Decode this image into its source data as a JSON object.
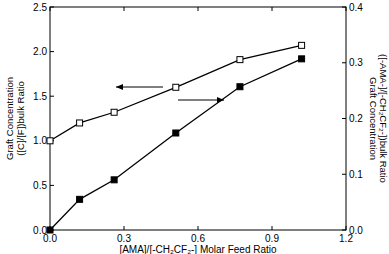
{
  "chart_data": {
    "type": "line",
    "x_label": "[AMA]/[-CH₂CF₂-] Molar Feed Ratio",
    "y_label": [
      "Graft Concentration",
      "([C]/[F])bulk Ratio"
    ],
    "y2_label": [
      "Graft Concentration",
      "([-AMA-]/[-CH₂CF₂-])bulk Ratio"
    ],
    "x": [
      0,
      0.12,
      0.26,
      0.51,
      0.77,
      1.02
    ],
    "series": [
      {
        "color": "#000000",
        "marker": "open-square",
        "line_style": "solid",
        "values": [
          1.0,
          1.2,
          1.32,
          1.6,
          1.91,
          2.07
        ]
      },
      {
        "color": "#000000",
        "marker": "square",
        "line_style": "solid",
        "axis": "y2",
        "values": [
          0,
          0.055,
          0.09,
          0.174,
          0.257,
          0.307
        ]
      }
    ],
    "xlim": [
      0,
      1.2
    ],
    "xticks": [
      {
        "value": 0,
        "label": "0.0"
      },
      {
        "value": 0.3,
        "label": "0.3"
      },
      {
        "value": 0.6,
        "label": "0.6"
      },
      {
        "value": 0.9,
        "label": "0.9"
      },
      {
        "value": 1.2,
        "label": "1.2"
      }
    ],
    "ylim": [
      0,
      2.5
    ],
    "yticks": [
      {
        "value": 0,
        "label": "0.0"
      },
      {
        "value": 0.5,
        "label": "0.5"
      },
      {
        "value": 1.0,
        "label": "1.0"
      },
      {
        "value": 1.5,
        "label": "1.5"
      },
      {
        "value": 2.0,
        "label": "2.0"
      },
      {
        "value": 2.5,
        "label": "2.5"
      }
    ],
    "y2lim": [
      0,
      0.4
    ],
    "y2ticks": [
      {
        "value": 0,
        "label": "0.0"
      },
      {
        "value": 0.1,
        "label": "0.1"
      },
      {
        "value": 0.2,
        "label": "0.2"
      },
      {
        "value": 0.3,
        "label": "0.3"
      },
      {
        "value": 0.4,
        "label": "0.4"
      }
    ],
    "grid": false
  }
}
